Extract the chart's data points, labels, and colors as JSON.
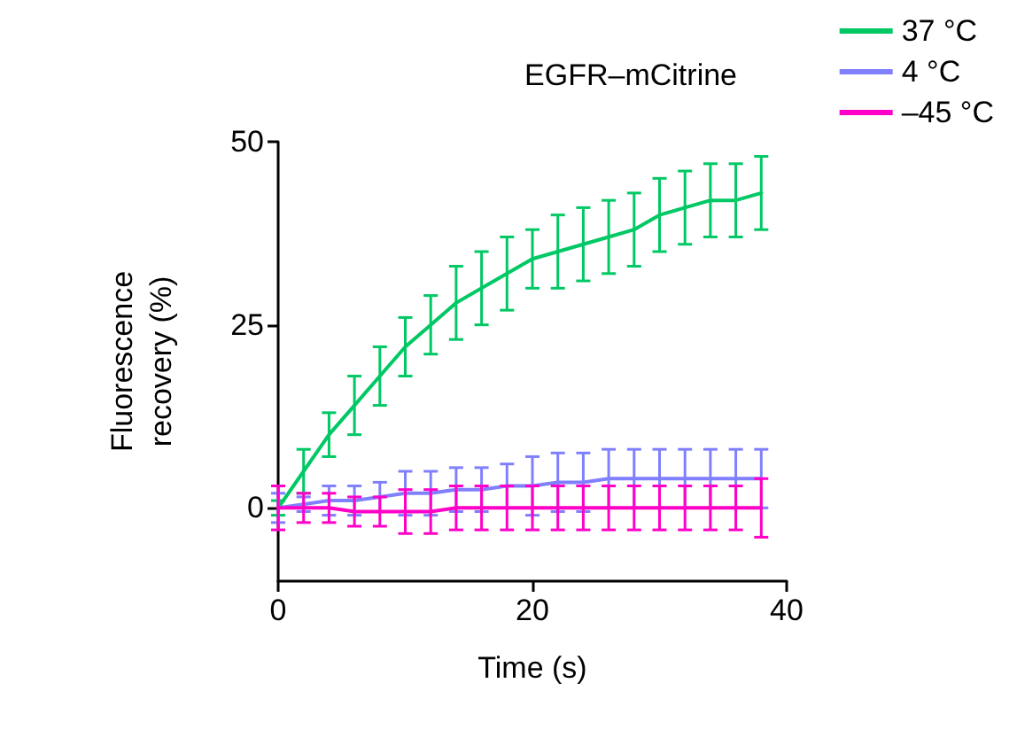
{
  "chart_data": {
    "type": "line",
    "xlabel": "Time (s)",
    "ylabel": "Fluorescence recovery (%)",
    "legend_title": "EGFR–mCitrine",
    "legend": "top right",
    "grid": false,
    "marker": "none",
    "line_style": "solid",
    "x": [
      0,
      2,
      4,
      6,
      8,
      10,
      12,
      14,
      16,
      18,
      20,
      22,
      24,
      26,
      28,
      30,
      32,
      34,
      36,
      38
    ],
    "xlim": [
      0,
      40
    ],
    "xticks": [
      0,
      20,
      40
    ],
    "ylim": [
      -10,
      50
    ],
    "yticks": [
      0,
      25,
      50
    ],
    "series": [
      {
        "name": "37 °C",
        "color": "#00c864",
        "values": [
          0,
          5,
          10,
          14,
          18,
          22,
          25,
          28,
          30,
          32,
          34,
          35,
          36,
          37,
          38,
          40,
          41,
          42,
          42,
          43
        ],
        "errors": [
          1,
          3,
          3,
          4,
          4,
          4,
          4,
          5,
          5,
          5,
          4,
          5,
          5,
          5,
          5,
          5,
          5,
          5,
          5,
          5
        ]
      },
      {
        "name": "4 °C",
        "color": "#8080ff",
        "values": [
          0,
          0.5,
          1,
          1,
          1.5,
          2,
          2,
          2.5,
          2.5,
          3,
          3,
          3.5,
          3.5,
          4,
          4,
          4,
          4,
          4,
          4,
          4
        ],
        "errors": [
          2,
          1,
          2,
          2,
          2,
          3,
          3,
          3,
          3,
          3,
          4,
          4,
          4,
          4,
          4,
          4,
          4,
          4,
          4,
          4
        ]
      },
      {
        "name": "–45 °C",
        "color": "#ff00c8",
        "values": [
          0,
          0,
          0,
          -0.5,
          -0.5,
          -0.5,
          -0.5,
          0,
          0,
          0,
          0,
          0,
          0,
          0,
          0,
          0,
          0,
          0,
          0,
          0
        ],
        "errors": [
          3,
          2,
          2,
          2,
          2,
          3,
          3,
          3,
          3,
          3,
          3,
          3,
          3,
          3,
          3,
          3,
          3,
          3,
          3,
          4
        ]
      }
    ]
  }
}
